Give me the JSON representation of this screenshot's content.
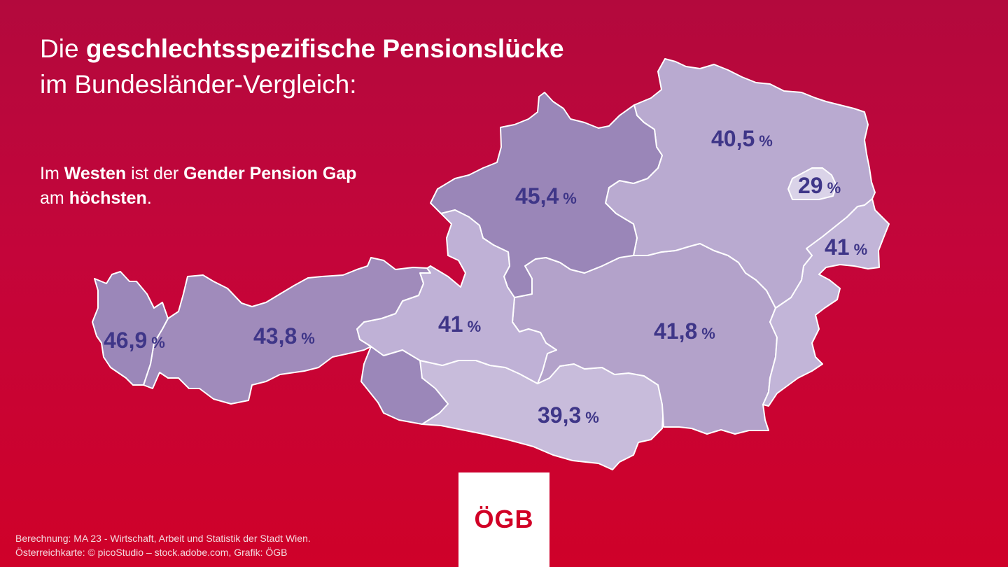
{
  "title": {
    "regular": "Die ",
    "bold": "geschlechtsspezifische Pensionslücke",
    "line2": "im Bundesländer-Vergleich:"
  },
  "subtitle": {
    "p1": "Im ",
    "b1": "Westen",
    "p2": " ist der ",
    "b2": "Gender Pension Gap",
    "line2_p": "am ",
    "line2_b": "höchsten",
    "line2_end": "."
  },
  "regions": [
    {
      "id": "vorarlberg",
      "value": "46,9",
      "unit": "%",
      "color": "#9b87b9"
    },
    {
      "id": "tirol",
      "value": "43,8",
      "unit": "%",
      "color": "#a08bbb"
    },
    {
      "id": "salzburg",
      "value": "41",
      "unit": "%",
      "color": "#bfb1d6"
    },
    {
      "id": "oberoesterreich",
      "value": "45,4",
      "unit": "%",
      "color": "#9a86b8"
    },
    {
      "id": "niederoesterreich",
      "value": "40,5",
      "unit": "%",
      "color": "#b9aad0"
    },
    {
      "id": "wien",
      "value": "29",
      "unit": "%",
      "color": "#dad3e8"
    },
    {
      "id": "burgenland",
      "value": "41",
      "unit": "%",
      "color": "#c2b5d8"
    },
    {
      "id": "steiermark",
      "value": "41,8",
      "unit": "%",
      "color": "#b3a2ca"
    },
    {
      "id": "kaernten",
      "value": "39,3",
      "unit": "%",
      "color": "#c8bcdb"
    }
  ],
  "logo": {
    "text": "ÖGB"
  },
  "credits": {
    "line1": "Berechnung: MA 23 - Wirtschaft, Arbeit und Statistik der Stadt Wien.",
    "line2": "Österreichkarte: © picoStudio – stock.adobe.com, Grafik: ÖGB"
  }
}
